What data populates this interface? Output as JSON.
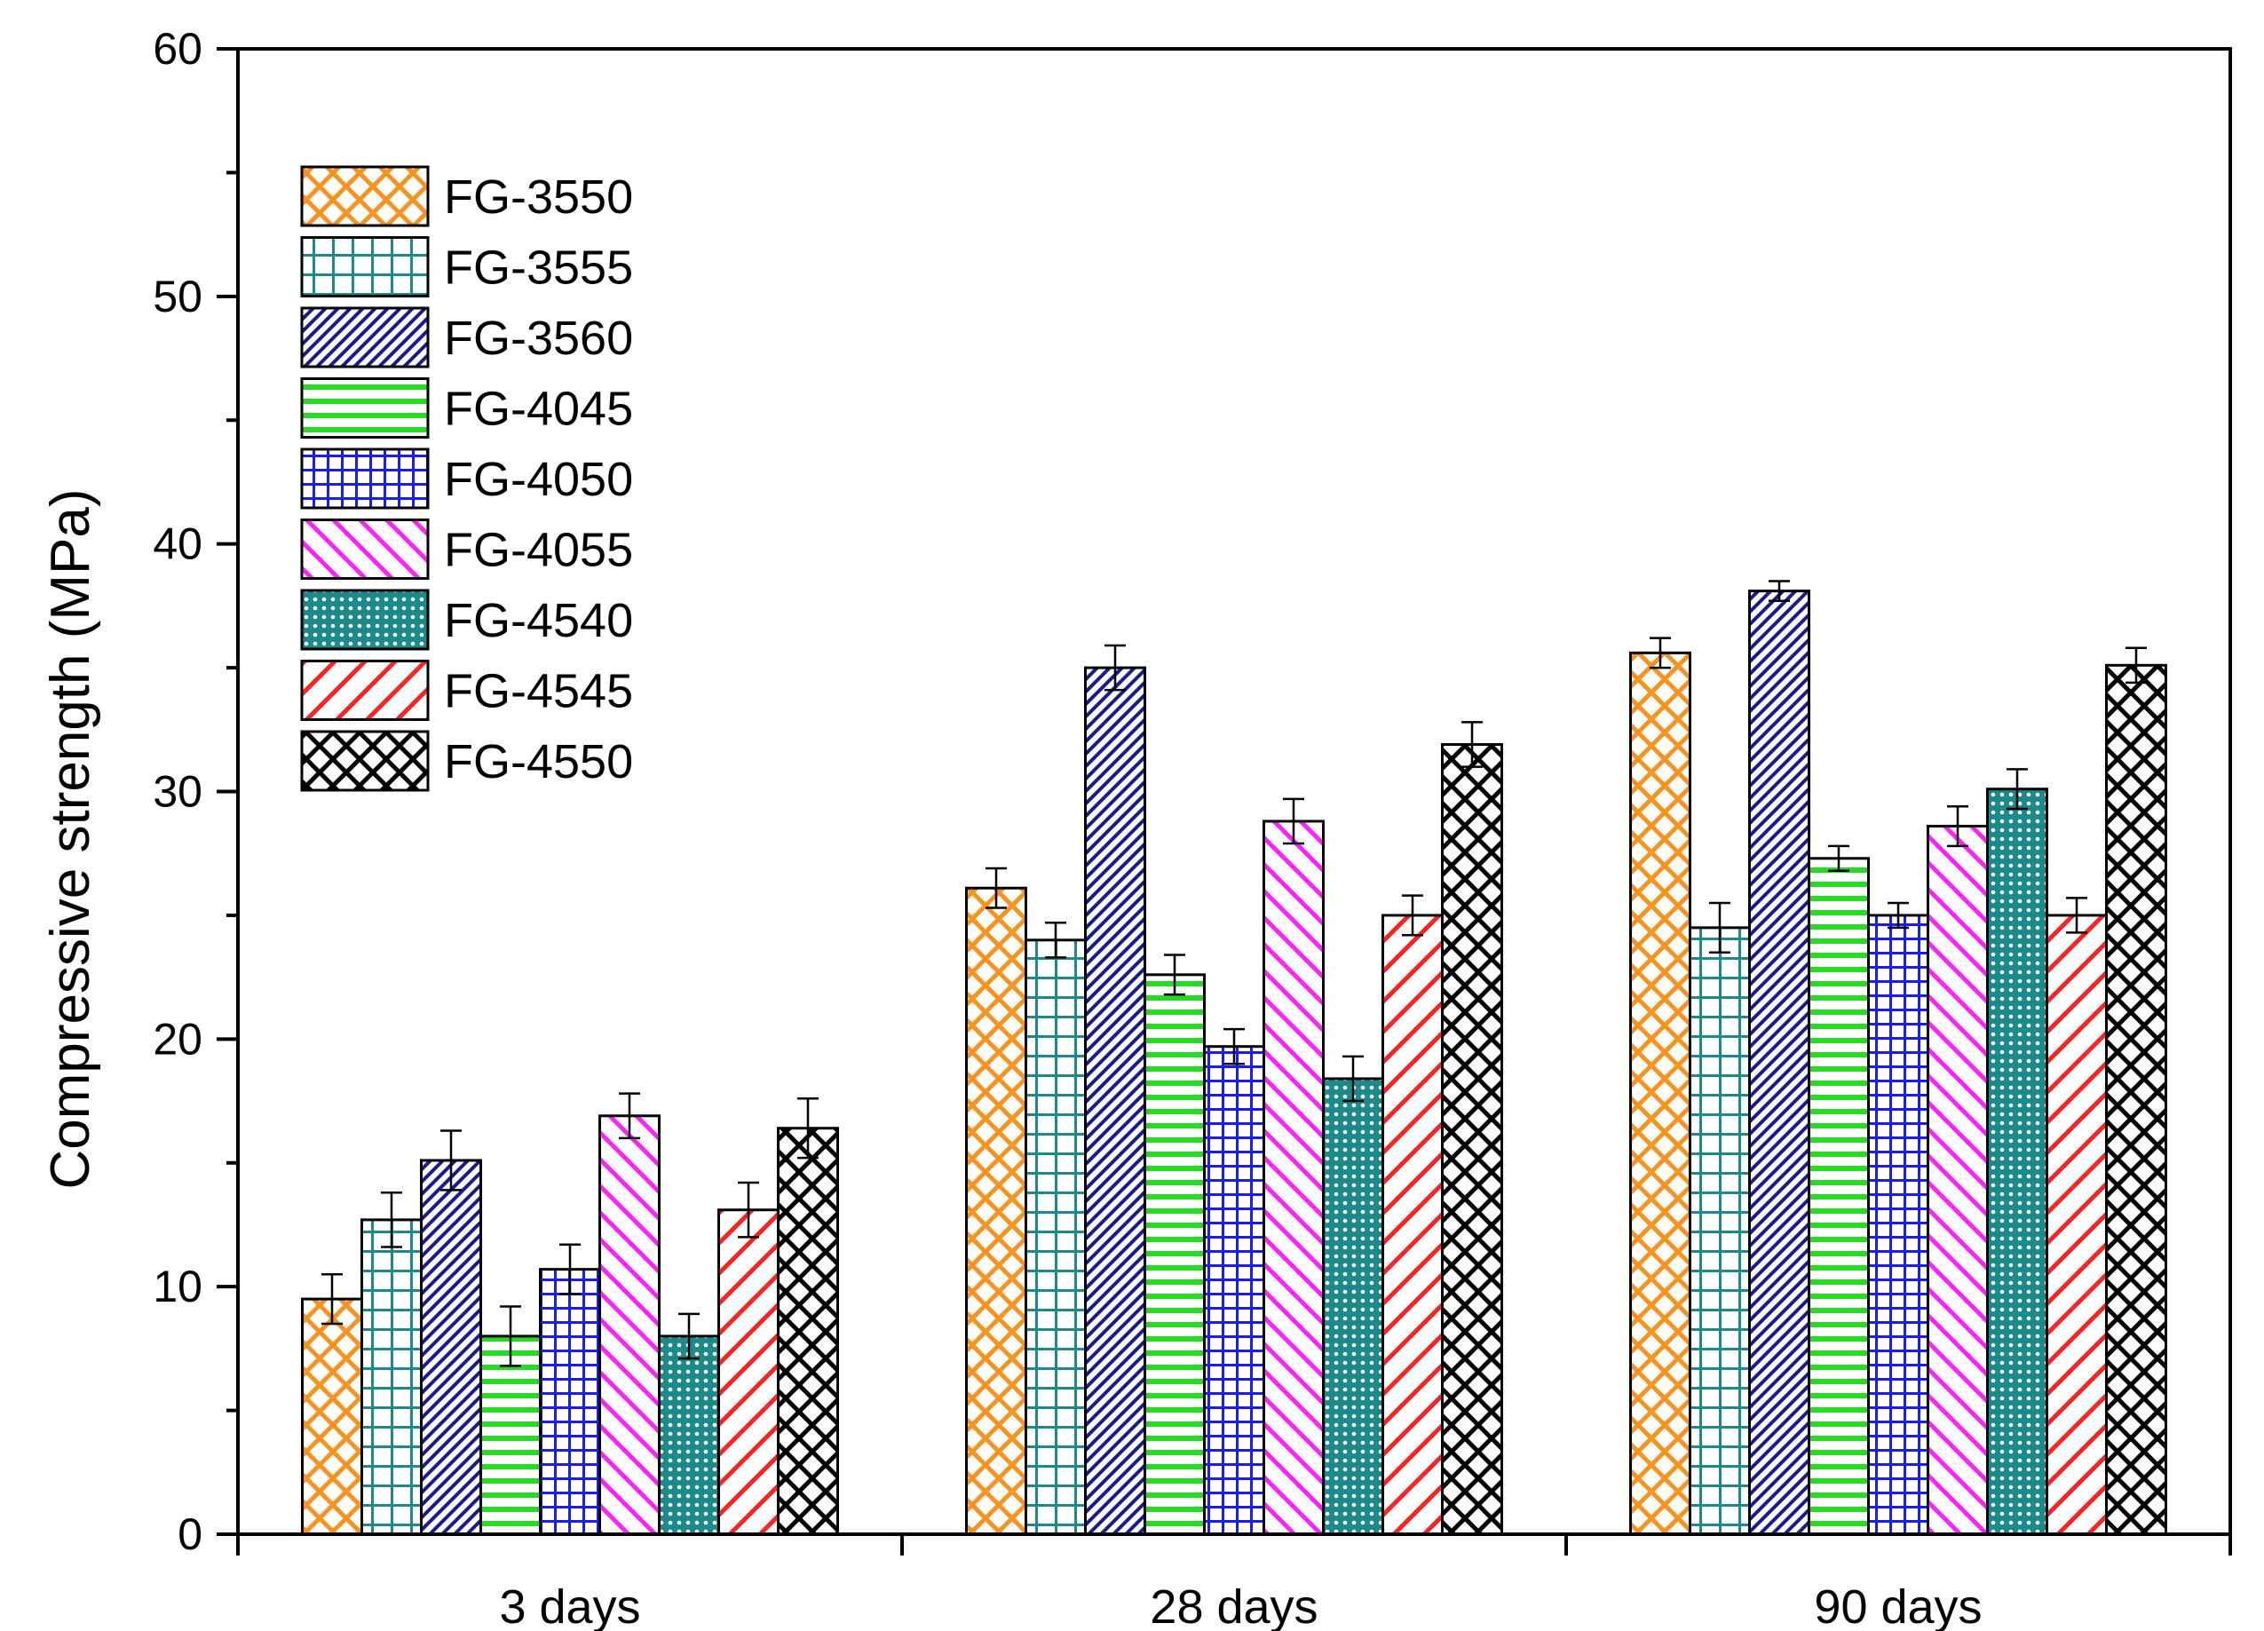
{
  "chart_data": {
    "type": "bar",
    "title": "",
    "xlabel": "",
    "ylabel": "Compressive strength (MPa)",
    "ylim": [
      0,
      60
    ],
    "yticks": [
      0,
      10,
      20,
      30,
      40,
      50,
      60
    ],
    "categories": [
      "3 days",
      "28 days",
      "90 days"
    ],
    "legend_position": "top-left",
    "series": [
      {
        "name": "FG-3550",
        "values": [
          9.5,
          26.1,
          35.6
        ],
        "errors": [
          1.0,
          0.8,
          0.6
        ],
        "color": "#f7931e",
        "pattern": "crosshatch-diag"
      },
      {
        "name": "FG-3555",
        "values": [
          12.7,
          24.0,
          24.5
        ],
        "errors": [
          1.1,
          0.7,
          1.0
        ],
        "color": "#1a8a8a",
        "pattern": "grid"
      },
      {
        "name": "FG-3560",
        "values": [
          15.1,
          35.0,
          38.1
        ],
        "errors": [
          1.2,
          0.9,
          0.4
        ],
        "color": "#1c1c8c",
        "pattern": "diag-dense"
      },
      {
        "name": "FG-4045",
        "values": [
          8.0,
          22.6,
          27.3
        ],
        "errors": [
          1.2,
          0.8,
          0.5
        ],
        "color": "#22dd22",
        "pattern": "horizontal"
      },
      {
        "name": "FG-4050",
        "values": [
          10.7,
          19.7,
          25.0
        ],
        "errors": [
          1.0,
          0.7,
          0.5
        ],
        "color": "#1a1aff",
        "pattern": "fine-grid"
      },
      {
        "name": "FG-4055",
        "values": [
          16.9,
          28.8,
          28.6
        ],
        "errors": [
          0.9,
          0.9,
          0.8
        ],
        "color": "#ff22ff",
        "pattern": "diag-back"
      },
      {
        "name": "FG-4540",
        "values": [
          8.0,
          18.4,
          30.1
        ],
        "errors": [
          0.9,
          0.9,
          0.8
        ],
        "color": "#1a8a8a",
        "pattern": "dense-cross"
      },
      {
        "name": "FG-4545",
        "values": [
          13.1,
          25.0,
          25.0
        ],
        "errors": [
          1.1,
          0.8,
          0.7
        ],
        "color": "#ff2222",
        "pattern": "diag-fwd"
      },
      {
        "name": "FG-4550",
        "values": [
          16.4,
          31.9,
          35.1
        ],
        "errors": [
          1.2,
          0.9,
          0.7
        ],
        "color": "#000000",
        "pattern": "crosshatch-diag"
      }
    ]
  }
}
